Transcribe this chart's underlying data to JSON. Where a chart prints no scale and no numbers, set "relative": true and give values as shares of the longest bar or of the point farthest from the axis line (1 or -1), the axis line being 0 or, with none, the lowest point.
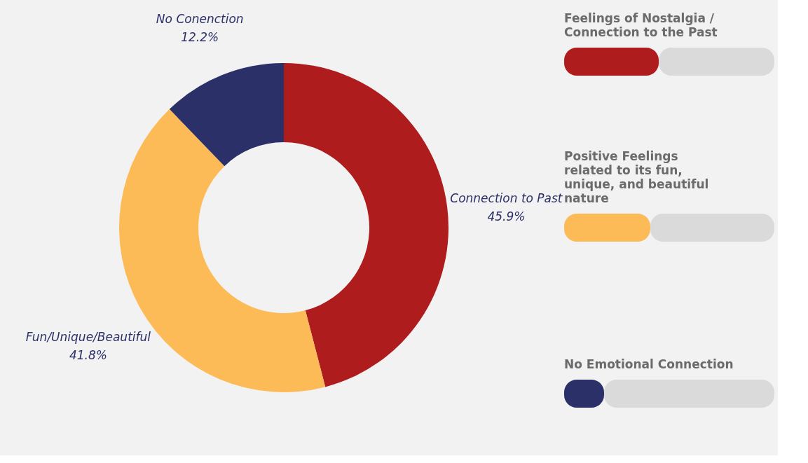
{
  "chart_data": [
    {
      "type": "donut",
      "categories": [
        "Connection to Past",
        "Fun/Unique/Beautiful",
        "No Conenction"
      ],
      "values": [
        45.9,
        41.8,
        12.2
      ],
      "colors": [
        "#ae1c1e",
        "#fdbb58",
        "#2c3068"
      ],
      "value_labels": [
        "45.9%",
        "41.8%",
        "12.2%"
      ]
    },
    {
      "type": "bar",
      "orientation": "horizontal",
      "stacked": true,
      "relative": true,
      "categories": [
        "Feelings of Nostalgia / Connection to the Past",
        "Positive Feelings related to its fun, unique, and beautiful nature",
        "No Emotional Connection"
      ],
      "series": [
        {
          "colors": [
            "#ae1c1e",
            "#fdbb58",
            "#2c3068"
          ],
          "values": [
            0.45,
            0.41,
            0.19
          ]
        },
        {
          "color": "#dadada",
          "values": [
            0.55,
            0.59,
            0.81
          ]
        }
      ]
    }
  ]
}
